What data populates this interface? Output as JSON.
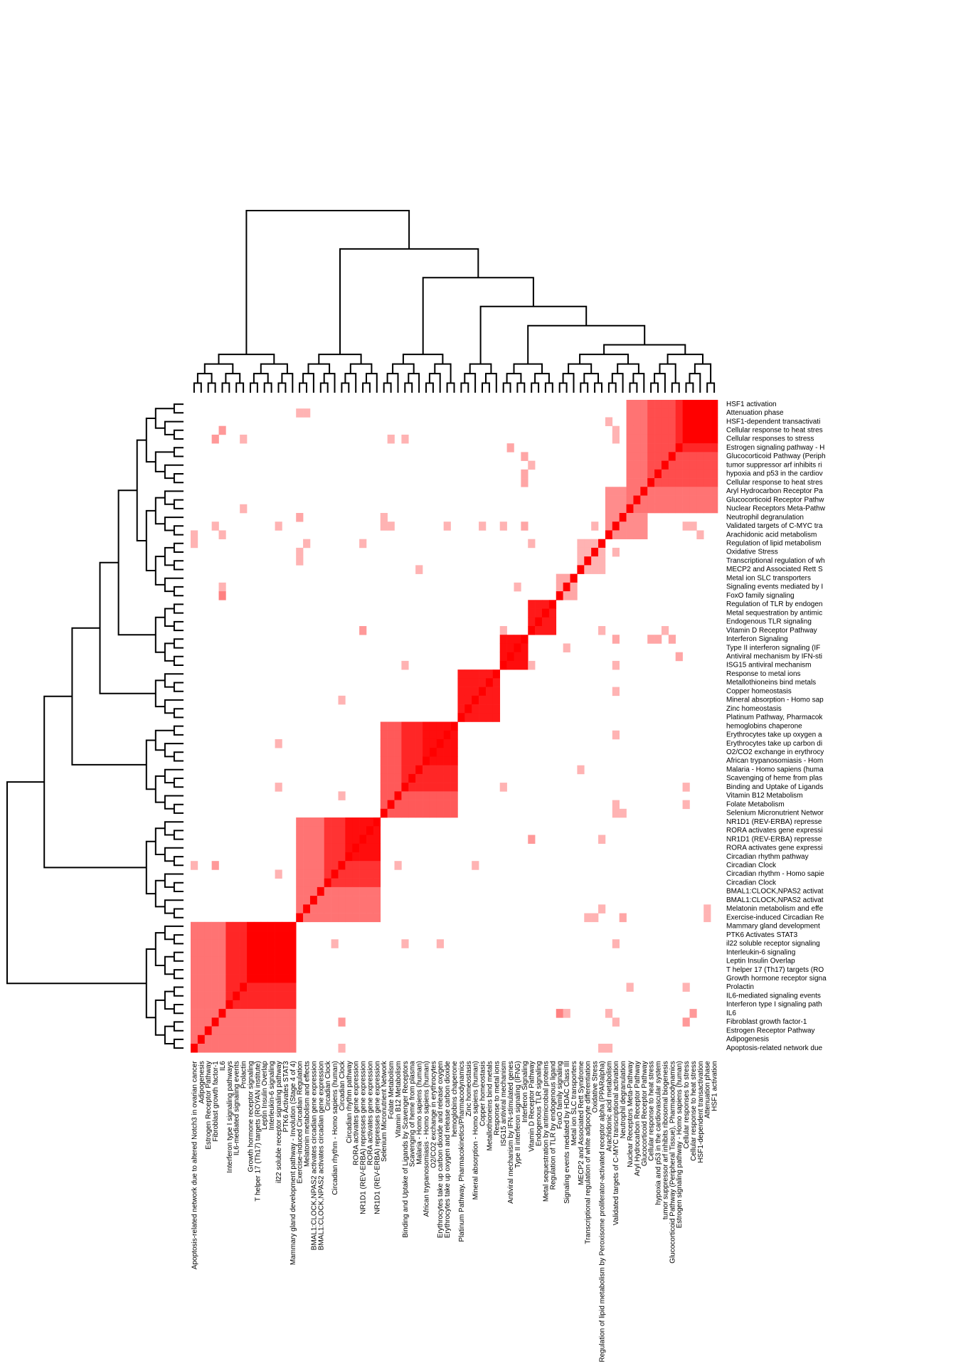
{
  "chart_data": {
    "type": "heatmap",
    "title": "",
    "xlabel": "",
    "ylabel": "",
    "colors": {
      "low": "#ffffff",
      "high": "#ff0000",
      "dendrogram": "#000000"
    },
    "value_range": [
      0,
      1
    ],
    "column_labels": [
      "Apoptosis-related network due to altered Notch3 in ovarian cancer",
      "Adipogenesis",
      "Estrogen Receptor Pathway",
      "Fibroblast growth factor-1",
      "IL6",
      "Interferon type I signaling pathways",
      "IL6-mediated signaling events",
      "Prolactin",
      "Growth hormone receptor signaling",
      "T helper 17 (Th17) targets (ROYAN institute)",
      "Leptin Insulin Overlap",
      "Interleukin-6 signaling",
      "il22 soluble receptor signaling pathway",
      "PTK6 Activates STAT3",
      "Mammary gland development pathway - Involution (Stage 4 of 4)",
      "Exercise-induced Circadian Regulation",
      "Melatonin metabolism and effects",
      "BMAL1:CLOCK,NPAS2 activates circadian gene expression",
      "BMAL1:CLOCK,NPAS2 activates circadian gene expression",
      "Circadian Clock",
      "Circadian rhythm - Homo sapiens (human)",
      "Circadian Clock",
      "Circadian rhythm pathway",
      "RORA activates gene expression",
      "NR1D1 (REV-ERBA) represses gene expression",
      "RORA activates gene expression",
      "NR1D1 (REV-ERBA) represses gene expression",
      "Selenium Micronutrient Network",
      "Folate Metabolism",
      "Vitamin B12 Metabolism",
      "Binding and Uptake of Ligands by Scavenger Receptors",
      "Scavenging of heme from plasma",
      "Malaria - Homo sapiens (human)",
      "African trypanosomiasis - Homo sapiens (human)",
      "O2/CO2 exchange in erythrocytes",
      "Erythrocytes take up carbon dioxide and release oxygen",
      "Erythrocytes take up oxygen and release carbon dioxide",
      "hemoglobins chaperone",
      "Platinum Pathway, Pharmacokinetics/Pharmacodynamics",
      "Zinc homeostasis",
      "Mineral absorption - Homo sapiens (human)",
      "Copper homeostasis",
      "Metallothioneins bind metals",
      "Response to metal ions",
      "ISG15 antiviral mechanism",
      "Antiviral mechanism by IFN-stimulated genes",
      "Type II interferon signaling (IFNG)",
      "Interferon Signaling",
      "Vitamin D Receptor Pathway",
      "Endogenous TLR signaling",
      "Metal sequestration by antimicrobial proteins",
      "Regulation of TLR by endogenous ligand",
      "FoxO family signaling",
      "Signaling events mediated by HDAC Class III",
      "Metal ion SLC transporters",
      "MECP2 and Associated Rett Syndrome",
      "Transcriptional regulation of white adipocyte differentiation",
      "Oxidative Stress",
      "Regulation of lipid metabolism by Peroxisome proliferator-activated receptor alpha (PPARalpha)",
      "Arachidonic acid metabolism",
      "Validated targets of C-MYC transcriptional activation",
      "Neutrophil degranulation",
      "Nuclear Receptors Meta-Pathway",
      "Aryl Hydrocarbon Receptor Pathway",
      "Glucocorticoid Receptor Pathway",
      "Cellular response to heat stress",
      "hypoxia and p53 in the cardiovascular system",
      "tumor suppressor arf inhibits ribosomal biogenesis",
      "Glucocorticoid Pathway (Peripheral Tissue), Pharmacodynamics",
      "Estrogen signaling pathway - Homo sapiens (human)",
      "Cellular responses to stress",
      "Cellular response to heat stress",
      "HSF1-dependent transactivation",
      "Attenuation phase",
      "HSF1 activation"
    ],
    "row_labels": [
      "HSF1 activation",
      "Attenuation phase",
      "HSF1-dependent transactivati",
      "Cellular response to heat stres",
      "Cellular responses to stress",
      "Estrogen signaling pathway - H",
      "Glucocorticoid Pathway (Periph",
      "tumor suppressor arf inhibits ri",
      "hypoxia and p53 in the cardiov",
      "Cellular response to heat stres",
      "Aryl Hydrocarbon Receptor Pa",
      "Glucocorticoid Receptor Pathw",
      "Nuclear Receptors Meta-Pathw",
      "Neutrophil degranulation",
      "Validated targets of C-MYC tra",
      "Arachidonic acid metabolism",
      "Regulation of lipid metabolism",
      "Oxidative Stress",
      "Transcriptional regulation of wh",
      "MECP2 and Associated Rett S",
      "Metal ion SLC transporters",
      "Signaling events mediated by I",
      "FoxO family signaling",
      "Regulation of TLR by endogen",
      "Metal sequestration by antimic",
      "Endogenous TLR signaling",
      "Vitamin D Receptor Pathway",
      "Interferon Signaling",
      "Type II interferon signaling (IF",
      "Antiviral mechanism by IFN-sti",
      "ISG15 antiviral mechanism",
      "Response to metal ions",
      "Metallothioneins bind metals",
      "Copper homeostasis",
      "Mineral absorption - Homo sap",
      "Zinc homeostasis",
      "Platinum Pathway, Pharmacok",
      "hemoglobins chaperone",
      "Erythrocytes take up oxygen a",
      "Erythrocytes take up carbon di",
      "O2/CO2 exchange in erythrocy",
      "African trypanosomiasis - Hom",
      "Malaria - Homo sapiens (huma",
      "Scavenging of heme from plas",
      "Binding and Uptake of Ligands",
      "Vitamin B12 Metabolism",
      "Folate Metabolism",
      "Selenium Micronutrient Networ",
      "NR1D1 (REV-ERBA) represse",
      "RORA activates gene expressi",
      "NR1D1 (REV-ERBA) represse",
      "RORA activates gene expressi",
      "Circadian rhythm pathway",
      "Circadian Clock",
      "Circadian rhythm - Homo sapie",
      "Circadian Clock",
      "BMAL1:CLOCK,NPAS2 activat",
      "BMAL1:CLOCK,NPAS2 activat",
      "Melatonin metabolism and effe",
      "Exercise-induced Circadian Re",
      "Mammary gland development",
      "PTK6 Activates STAT3",
      "il22 soluble receptor signaling",
      "Interleukin-6 signaling",
      "Leptin Insulin Overlap",
      "T helper 17 (Th17) targets (RO",
      "Growth hormone receptor signa",
      "Prolactin",
      "IL6-mediated signaling events",
      "Interferon type I signaling path",
      "IL6",
      "Fibroblast growth factor-1",
      "Estrogen Receptor Pathway",
      "Adipogenesis",
      "Apoptosis-related network due"
    ],
    "blocks": [
      {
        "cols": [
          0,
          14
        ],
        "level": 0.55
      },
      {
        "cols": [
          5,
          14
        ],
        "level": 0.85
      },
      {
        "cols": [
          8,
          14
        ],
        "level": 1.0
      },
      {
        "cols": [
          15,
          26
        ],
        "level": 0.55
      },
      {
        "cols": [
          19,
          26
        ],
        "level": 0.8
      },
      {
        "cols": [
          22,
          26
        ],
        "level": 0.95
      },
      {
        "cols": [
          27,
          37
        ],
        "level": 0.65
      },
      {
        "cols": [
          30,
          37
        ],
        "level": 0.85
      },
      {
        "cols": [
          33,
          37
        ],
        "level": 0.95
      },
      {
        "cols": [
          38,
          43
        ],
        "level": 0.9
      },
      {
        "cols": [
          44,
          47
        ],
        "level": 0.95
      },
      {
        "cols": [
          48,
          51
        ],
        "level": 0.9
      },
      {
        "cols": [
          52,
          54
        ],
        "level": 0.35
      },
      {
        "cols": [
          55,
          58
        ],
        "level": 0.3
      },
      {
        "cols": [
          59,
          64
        ],
        "level": 0.45
      },
      {
        "cols": [
          62,
          74
        ],
        "level": 0.55
      },
      {
        "cols": [
          65,
          74
        ],
        "level": 0.7
      },
      {
        "cols": [
          69,
          74
        ],
        "level": 0.85
      },
      {
        "cols": [
          70,
          74
        ],
        "level": 1.0
      }
    ],
    "sparse_cells": [
      [
        3,
        70,
        0.4
      ],
      [
        3,
        60,
        0.3
      ],
      [
        7,
        70,
        0.3
      ],
      [
        7,
        62,
        0.3
      ],
      [
        4,
        52,
        0.5
      ],
      [
        4,
        53,
        0.3
      ],
      [
        4,
        59,
        0.3
      ],
      [
        4,
        71,
        0.4
      ],
      [
        12,
        20,
        0.3
      ],
      [
        12,
        30,
        0.3
      ],
      [
        12,
        35,
        0.3
      ],
      [
        12,
        60,
        0.3
      ],
      [
        15,
        61,
        0.35
      ],
      [
        15,
        56,
        0.3
      ],
      [
        16,
        20,
        0.3
      ],
      [
        16,
        58,
        0.3
      ],
      [
        21,
        0,
        0.3
      ],
      [
        21,
        3,
        0.4
      ],
      [
        21,
        29,
        0.3
      ],
      [
        21,
        40,
        0.3
      ],
      [
        24,
        48,
        0.4
      ],
      [
        24,
        58,
        0.3
      ],
      [
        27,
        60,
        0.3
      ],
      [
        27,
        61,
        0.3
      ],
      [
        28,
        60,
        0.3
      ],
      [
        28,
        70,
        0.3
      ],
      [
        32,
        55,
        0.3
      ],
      [
        36,
        60,
        0.3
      ],
      [
        40,
        40,
        0.3
      ],
      [
        44,
        30,
        0.3
      ],
      [
        44,
        48,
        0.3
      ],
      [
        44,
        60,
        0.3
      ],
      [
        46,
        53,
        0.3
      ],
      [
        57,
        15,
        0.3
      ],
      [
        57,
        60,
        0.3
      ],
      [
        58,
        0,
        0.3
      ],
      [
        58,
        48,
        0.3
      ],
      [
        59,
        0,
        0.3
      ],
      [
        60,
        41,
        0.3
      ],
      [
        60,
        47,
        0.35
      ],
      [
        65,
        47,
        0.35
      ],
      [
        66,
        47,
        0.35
      ],
      [
        67,
        48,
        0.3
      ],
      [
        68,
        47,
        0.35
      ],
      [
        69,
        45,
        0.35
      ],
      [
        70,
        30,
        0.3
      ],
      [
        70,
        60,
        0.3
      ],
      [
        70,
        66,
        0.4
      ],
      [
        71,
        60,
        0.3
      ],
      [
        72,
        59,
        0.3
      ],
      [
        73,
        15,
        0.3
      ],
      [
        73,
        16,
        0.3
      ]
    ],
    "legend": "none",
    "grid": false
  }
}
